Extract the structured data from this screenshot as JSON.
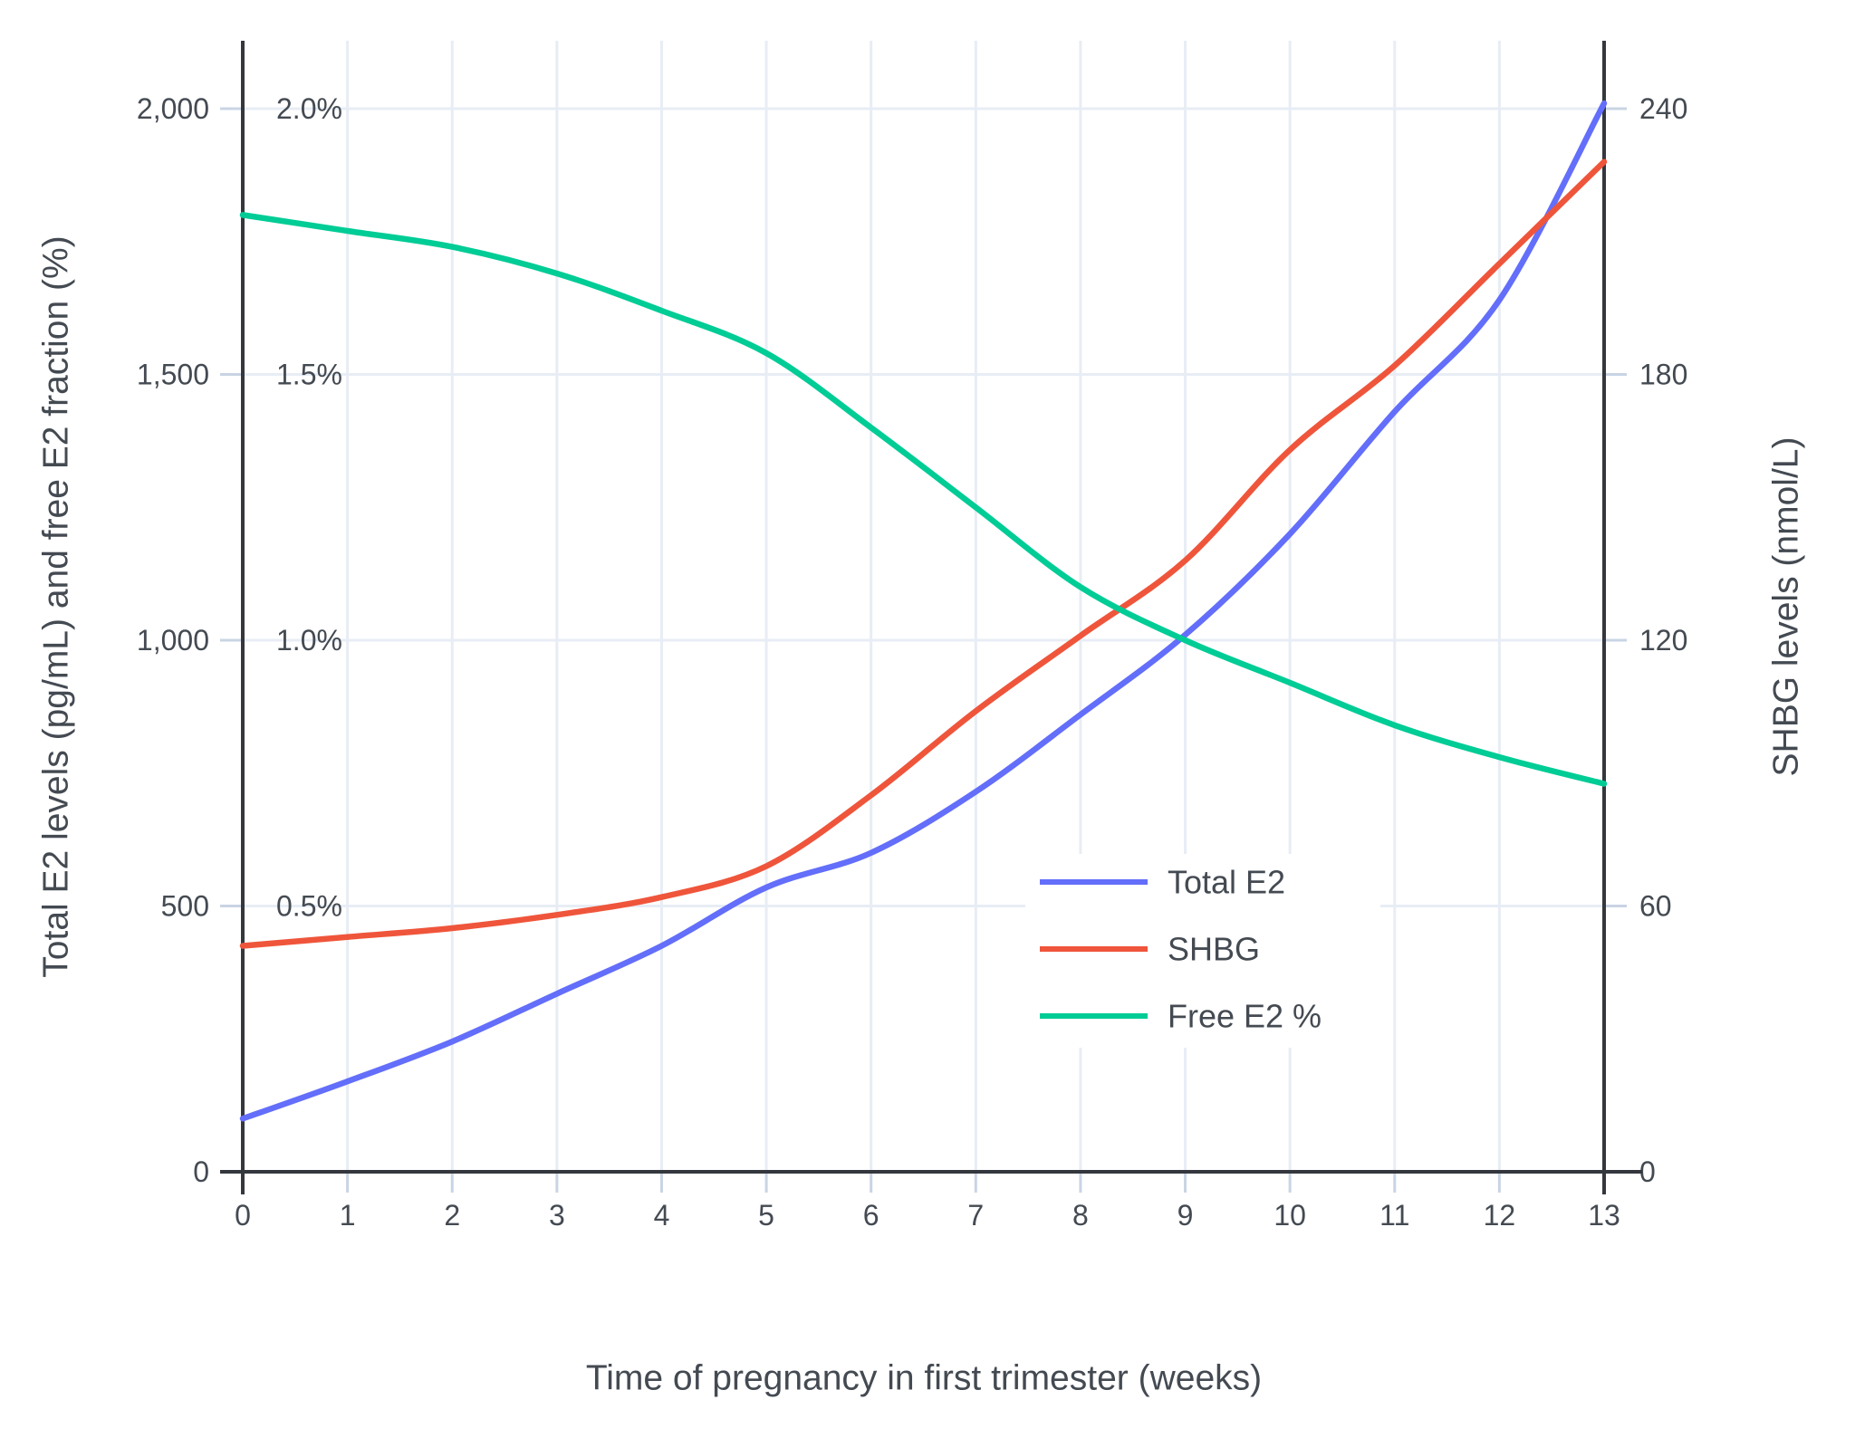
{
  "chart_data": {
    "type": "line",
    "title": "",
    "xlabel": "Time of pregnancy in first trimester (weeks)",
    "ylabel_left": "Total E2 levels (pg/mL) and free E2 fraction (%)",
    "ylabel_right": "SHBG levels (nmol/L)",
    "x": [
      0,
      1,
      2,
      3,
      4,
      5,
      6,
      7,
      8,
      9,
      10,
      11,
      12,
      13
    ],
    "x_tick_labels": [
      "0",
      "1",
      "2",
      "3",
      "4",
      "5",
      "6",
      "7",
      "8",
      "9",
      "10",
      "11",
      "12",
      "13"
    ],
    "xlim": [
      0,
      13
    ],
    "ylim_left": [
      0,
      2128
    ],
    "ylim_right": [
      0,
      255
    ],
    "grid": true,
    "legend_position": "inside-middle-right",
    "series": [
      {
        "name": "Total E2",
        "axis": "left",
        "units": "pg/mL",
        "color": "#636EFA",
        "values": [
          100,
          170,
          245,
          335,
          425,
          535,
          600,
          715,
          860,
          1010,
          1200,
          1430,
          1640,
          2010
        ]
      },
      {
        "name": "SHBG",
        "axis": "right",
        "units": "nmol/L",
        "color": "#EF553B",
        "values": [
          51,
          53,
          55,
          58,
          62,
          69,
          85,
          104,
          121,
          138,
          163,
          182,
          205,
          228
        ]
      },
      {
        "name": "Free E2 %",
        "axis": "left_pct",
        "units": "%",
        "color": "#00CC96",
        "values": [
          1.8,
          1.77,
          1.74,
          1.69,
          1.62,
          1.54,
          1.4,
          1.25,
          1.1,
          1.0,
          0.92,
          0.84,
          0.78,
          0.73
        ]
      }
    ],
    "left_axis_ticks": [
      {
        "value": 0,
        "label": "0"
      },
      {
        "value": 500,
        "label": "500"
      },
      {
        "value": 1000,
        "label": "1,000"
      },
      {
        "value": 1500,
        "label": "1,500"
      },
      {
        "value": 2000,
        "label": "2,000"
      }
    ],
    "left_axis_pct_annotations": [
      {
        "value": 0.5,
        "label": "0.5%"
      },
      {
        "value": 1.0,
        "label": "1.0%"
      },
      {
        "value": 1.5,
        "label": "1.5%"
      },
      {
        "value": 2.0,
        "label": "2.0%"
      }
    ],
    "right_axis_ticks": [
      {
        "value": 0,
        "label": "0"
      },
      {
        "value": 60,
        "label": "60"
      },
      {
        "value": 120,
        "label": "120"
      },
      {
        "value": 180,
        "label": "180"
      },
      {
        "value": 240,
        "label": "240"
      }
    ],
    "colors": {
      "background": "#ffffff",
      "grid_line": "#E8EDF5",
      "tick_mark": "#C9D4E4",
      "axis_line": "#34383E",
      "text": "#444A52",
      "legend_background": "#ffffff"
    }
  }
}
